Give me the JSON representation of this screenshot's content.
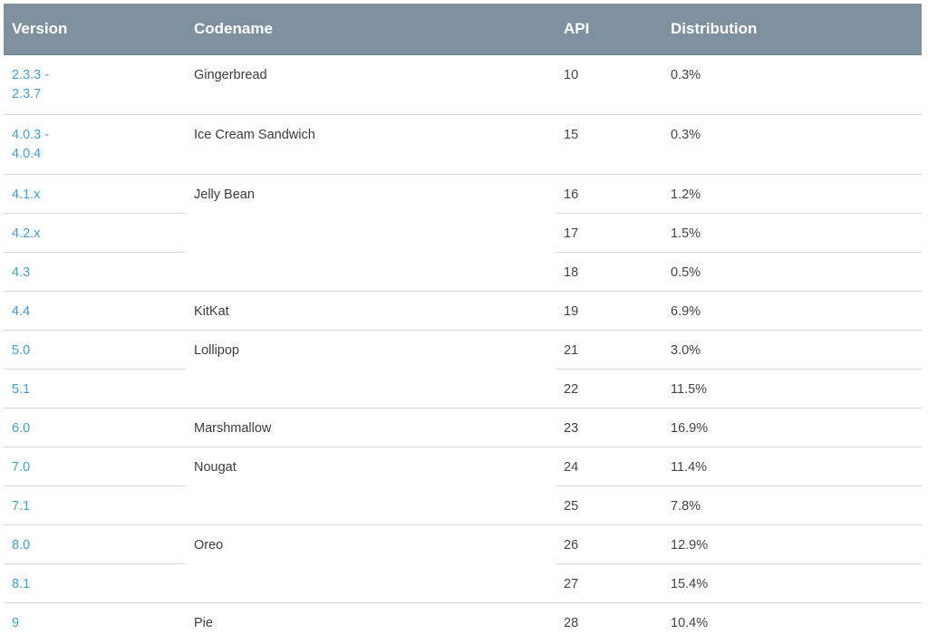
{
  "headers": {
    "version": "Version",
    "codename": "Codename",
    "api": "API",
    "distribution": "Distribution"
  },
  "rows": [
    {
      "version": "2.3.3 -",
      "version2": "2.3.7",
      "codename": "Gingerbread",
      "api": "10",
      "distribution": "0.3%"
    },
    {
      "version": "4.0.3 -",
      "version2": "4.0.4",
      "codename": "Ice Cream Sandwich",
      "api": "15",
      "distribution": "0.3%"
    },
    {
      "version": "4.1.x",
      "codename": "Jelly Bean",
      "api": "16",
      "distribution": "1.2%"
    },
    {
      "version": "4.2.x",
      "api": "17",
      "distribution": "1.5%"
    },
    {
      "version": "4.3",
      "api": "18",
      "distribution": "0.5%"
    },
    {
      "version": "4.4",
      "codename": "KitKat",
      "api": "19",
      "distribution": "6.9%"
    },
    {
      "version": "5.0",
      "codename": "Lollipop",
      "api": "21",
      "distribution": "3.0%"
    },
    {
      "version": "5.1",
      "api": "22",
      "distribution": "11.5%"
    },
    {
      "version": "6.0",
      "codename": "Marshmallow",
      "api": "23",
      "distribution": "16.9%"
    },
    {
      "version": "7.0",
      "codename": "Nougat",
      "api": "24",
      "distribution": "11.4%"
    },
    {
      "version": "7.1",
      "api": "25",
      "distribution": "7.8%"
    },
    {
      "version": "8.0",
      "codename": "Oreo",
      "api": "26",
      "distribution": "12.9%"
    },
    {
      "version": "8.1",
      "api": "27",
      "distribution": "15.4%"
    },
    {
      "version": "9",
      "codename": "Pie",
      "api": "28",
      "distribution": "10.4%"
    }
  ]
}
